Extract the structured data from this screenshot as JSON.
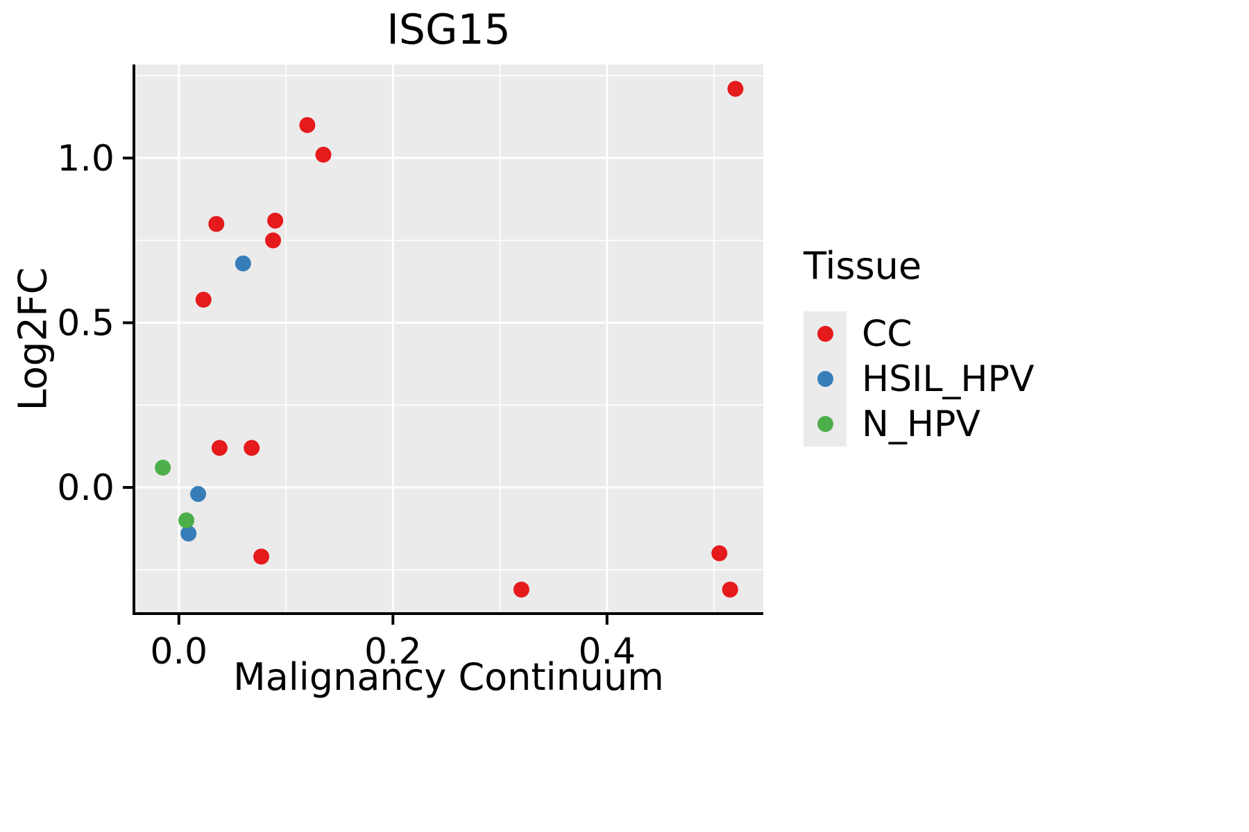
{
  "title": "ISG15",
  "legend": {
    "title": "Tissue"
  },
  "chart_data": {
    "type": "scatter",
    "title": "ISG15",
    "xlabel": "Malignancy Continuum",
    "ylabel": "Log2FC",
    "xlim": [
      -0.042,
      0.546
    ],
    "ylim": [
      -0.383,
      1.284
    ],
    "panel_bg": "#EBEBEB",
    "grid_color": "#FFFFFF",
    "x_ticks": {
      "values": [
        0.0,
        0.2,
        0.4
      ],
      "labels": [
        "0.0",
        "0.2",
        "0.4"
      ],
      "minor": [
        0.1,
        0.3,
        0.5
      ]
    },
    "y_ticks": {
      "values": [
        0.0,
        0.5,
        1.0
      ],
      "labels": [
        "0.0",
        "0.5",
        "1.0"
      ],
      "minor": [
        -0.25,
        0.25,
        0.75,
        1.25
      ]
    },
    "legend_position": "right",
    "series": [
      {
        "name": "CC",
        "color": "#E41A1C",
        "points": [
          [
            0.52,
            1.21
          ],
          [
            0.12,
            1.1
          ],
          [
            0.135,
            1.01
          ],
          [
            0.035,
            0.8
          ],
          [
            0.09,
            0.81
          ],
          [
            0.088,
            0.75
          ],
          [
            0.023,
            0.57
          ],
          [
            0.038,
            0.12
          ],
          [
            0.068,
            0.12
          ],
          [
            0.077,
            -0.21
          ],
          [
            0.32,
            -0.31
          ],
          [
            0.505,
            -0.2
          ],
          [
            0.515,
            -0.31
          ]
        ]
      },
      {
        "name": "HSIL_HPV",
        "color": "#377EB8",
        "points": [
          [
            0.06,
            0.68
          ],
          [
            0.018,
            -0.02
          ],
          [
            0.009,
            -0.14
          ]
        ]
      },
      {
        "name": "N_HPV",
        "color": "#4DAF4A",
        "points": [
          [
            -0.015,
            0.06
          ],
          [
            0.007,
            -0.1
          ]
        ]
      }
    ]
  }
}
